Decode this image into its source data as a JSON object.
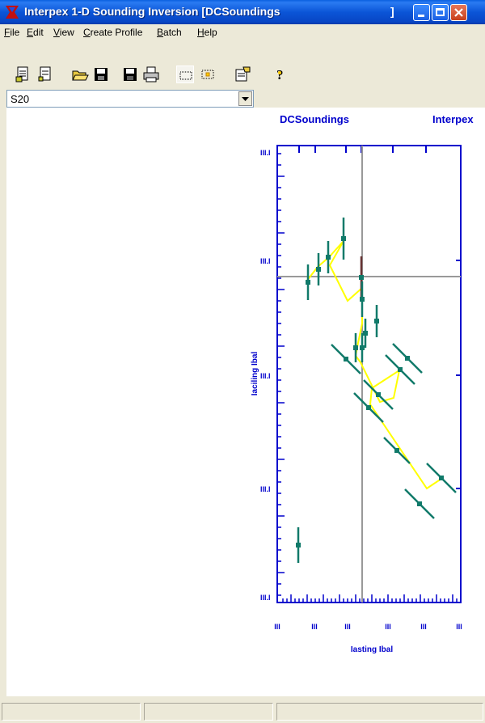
{
  "window": {
    "title": "Interpex 1-D Sounding Inversion [DCSoundings",
    "title_tail": "]"
  },
  "menu": [
    "File",
    "Edit",
    "View",
    "Create Profile",
    "Batch",
    "Help"
  ],
  "toolbar_icons": [
    "new-doc-icon",
    "new-doc-2-icon",
    "open-folder-icon",
    "save-icon",
    "save-as-icon",
    "print-icon",
    "select-rect-icon",
    "select-point-icon",
    "properties-icon",
    "help-icon"
  ],
  "combo": {
    "value": "S20"
  },
  "plot": {
    "left_label": "DCSoundings",
    "right_label": "Interpex",
    "y_tick_labels": [
      "III.I",
      "III.I",
      "III.I",
      "III.I",
      "III.I"
    ],
    "x_tick_labels": [
      "III",
      "III",
      "III",
      "III",
      "III",
      "III"
    ],
    "y_axis_label": "Iaciling Ibal",
    "x_axis_label": "Iasting Ibal",
    "colors": {
      "frame": "#0000cc",
      "model_line": "#ffff00",
      "data": "#117a6a",
      "crosshair": "#999999",
      "selected": "#663333"
    }
  },
  "status_panes": [
    "",
    "",
    ""
  ]
}
